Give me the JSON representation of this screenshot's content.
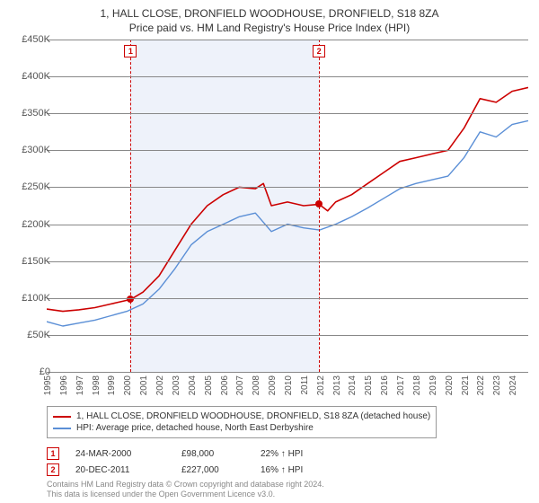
{
  "title_line1": "1, HALL CLOSE, DRONFIELD WOODHOUSE, DRONFIELD, S18 8ZA",
  "title_line2": "Price paid vs. HM Land Registry's House Price Index (HPI)",
  "chart": {
    "type": "line",
    "x_start": 1995,
    "x_end": 2025,
    "x_ticks": [
      1995,
      1996,
      1997,
      1998,
      1999,
      2000,
      2001,
      2002,
      2003,
      2004,
      2005,
      2006,
      2007,
      2008,
      2009,
      2010,
      2011,
      2012,
      2013,
      2014,
      2015,
      2016,
      2017,
      2018,
      2019,
      2020,
      2021,
      2022,
      2023,
      2024
    ],
    "y_min": 0,
    "y_max": 450000,
    "y_ticks": [
      0,
      50000,
      100000,
      150000,
      200000,
      250000,
      300000,
      350000,
      400000,
      450000
    ],
    "y_tick_labels": [
      "£0",
      "£50K",
      "£100K",
      "£150K",
      "£200K",
      "£250K",
      "£300K",
      "£350K",
      "£400K",
      "£450K"
    ],
    "grid_color": "#888888",
    "background_color": "#ffffff",
    "shade_color": "#eef2fa",
    "shade_start": 2000.23,
    "shade_end": 2011.97,
    "vline_color": "#cc0000",
    "series": {
      "property": {
        "color": "#cc0000",
        "width": 1.6,
        "points": [
          [
            1995,
            85000
          ],
          [
            1996,
            82000
          ],
          [
            1997,
            84000
          ],
          [
            1998,
            87000
          ],
          [
            1999,
            92000
          ],
          [
            2000.23,
            98000
          ],
          [
            2001,
            108000
          ],
          [
            2002,
            130000
          ],
          [
            2003,
            165000
          ],
          [
            2004,
            200000
          ],
          [
            2005,
            225000
          ],
          [
            2006,
            240000
          ],
          [
            2007,
            250000
          ],
          [
            2008,
            248000
          ],
          [
            2008.5,
            255000
          ],
          [
            2009,
            225000
          ],
          [
            2010,
            230000
          ],
          [
            2011,
            225000
          ],
          [
            2011.97,
            227000
          ],
          [
            2012.5,
            218000
          ],
          [
            2013,
            230000
          ],
          [
            2014,
            240000
          ],
          [
            2015,
            255000
          ],
          [
            2016,
            270000
          ],
          [
            2017,
            285000
          ],
          [
            2018,
            290000
          ],
          [
            2019,
            295000
          ],
          [
            2020,
            300000
          ],
          [
            2021,
            330000
          ],
          [
            2022,
            370000
          ],
          [
            2023,
            365000
          ],
          [
            2024,
            380000
          ],
          [
            2025,
            385000
          ]
        ]
      },
      "hpi": {
        "color": "#5b8fd6",
        "width": 1.4,
        "points": [
          [
            1995,
            68000
          ],
          [
            1996,
            62000
          ],
          [
            1997,
            66000
          ],
          [
            1998,
            70000
          ],
          [
            1999,
            76000
          ],
          [
            2000,
            82000
          ],
          [
            2001,
            92000
          ],
          [
            2002,
            112000
          ],
          [
            2003,
            140000
          ],
          [
            2004,
            172000
          ],
          [
            2005,
            190000
          ],
          [
            2006,
            200000
          ],
          [
            2007,
            210000
          ],
          [
            2008,
            215000
          ],
          [
            2009,
            190000
          ],
          [
            2010,
            200000
          ],
          [
            2011,
            195000
          ],
          [
            2012,
            192000
          ],
          [
            2013,
            200000
          ],
          [
            2014,
            210000
          ],
          [
            2015,
            222000
          ],
          [
            2016,
            235000
          ],
          [
            2017,
            248000
          ],
          [
            2018,
            255000
          ],
          [
            2019,
            260000
          ],
          [
            2020,
            265000
          ],
          [
            2021,
            290000
          ],
          [
            2022,
            325000
          ],
          [
            2023,
            318000
          ],
          [
            2024,
            335000
          ],
          [
            2025,
            340000
          ]
        ]
      }
    },
    "sale_markers": [
      {
        "n": "1",
        "year": 2000.23,
        "price": 98000
      },
      {
        "n": "2",
        "year": 2011.97,
        "price": 227000
      }
    ]
  },
  "legend": [
    {
      "color": "#cc0000",
      "text": "1, HALL CLOSE, DRONFIELD WOODHOUSE, DRONFIELD, S18 8ZA (detached house)"
    },
    {
      "color": "#5b8fd6",
      "text": "HPI: Average price, detached house, North East Derbyshire"
    }
  ],
  "sales": [
    {
      "n": "1",
      "date": "24-MAR-2000",
      "price": "£98,000",
      "pct": "22% ↑ HPI"
    },
    {
      "n": "2",
      "date": "20-DEC-2011",
      "price": "£227,000",
      "pct": "16% ↑ HPI"
    }
  ],
  "footer_line1": "Contains HM Land Registry data © Crown copyright and database right 2024.",
  "footer_line2": "This data is licensed under the Open Government Licence v3.0."
}
